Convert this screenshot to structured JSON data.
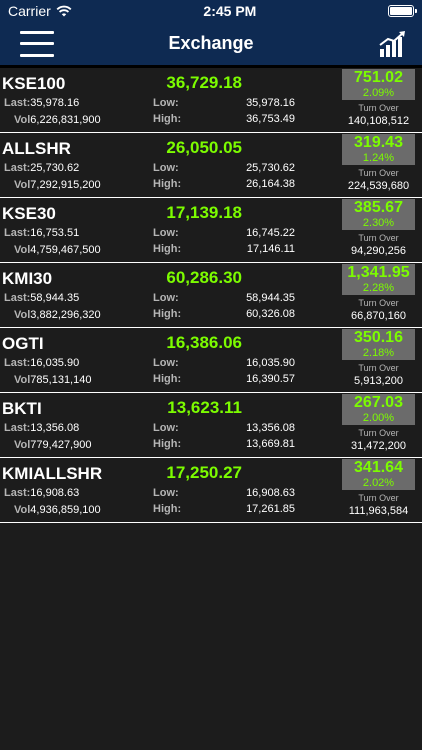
{
  "status": {
    "carrier": "Carrier",
    "time": "2:45 PM"
  },
  "nav": {
    "title": "Exchange"
  },
  "labels": {
    "last": "Last:",
    "vol": "Vol",
    "low": "Low:",
    "high": "High:",
    "turnover": "Turn Over"
  },
  "colors": {
    "positive": "#7cfc00",
    "header": "#0e2a52",
    "change_box": "#6b6b6b"
  },
  "indices": [
    {
      "symbol": "KSE100",
      "last": "35,978.16",
      "vol": "6,226,831,900",
      "price": "36,729.18",
      "low": "35,978.16",
      "high": "36,753.49",
      "change": "751.02",
      "pct": "2.09%",
      "turnover": "140,108,512"
    },
    {
      "symbol": "ALLSHR",
      "last": "25,730.62",
      "vol": "7,292,915,200",
      "price": "26,050.05",
      "low": "25,730.62",
      "high": "26,164.38",
      "change": "319.43",
      "pct": "1.24%",
      "turnover": "224,539,680"
    },
    {
      "symbol": "KSE30",
      "last": "16,753.51",
      "vol": "4,759,467,500",
      "price": "17,139.18",
      "low": "16,745.22",
      "high": "17,146.11",
      "change": "385.67",
      "pct": "2.30%",
      "turnover": "94,290,256"
    },
    {
      "symbol": "KMI30",
      "last": "58,944.35",
      "vol": "3,882,296,320",
      "price": "60,286.30",
      "low": "58,944.35",
      "high": "60,326.08",
      "change": "1,341.95",
      "pct": "2.28%",
      "turnover": "66,870,160"
    },
    {
      "symbol": "OGTI",
      "last": "16,035.90",
      "vol": "785,131,140",
      "price": "16,386.06",
      "low": "16,035.90",
      "high": "16,390.57",
      "change": "350.16",
      "pct": "2.18%",
      "turnover": "5,913,200"
    },
    {
      "symbol": "BKTI",
      "last": "13,356.08",
      "vol": "779,427,900",
      "price": "13,623.11",
      "low": "13,356.08",
      "high": "13,669.81",
      "change": "267.03",
      "pct": "2.00%",
      "turnover": "31,472,200"
    },
    {
      "symbol": "KMIALLSHR",
      "last": "16,908.63",
      "vol": "4,936,859,100",
      "price": "17,250.27",
      "low": "16,908.63",
      "high": "17,261.85",
      "change": "341.64",
      "pct": "2.02%",
      "turnover": "111,963,584"
    }
  ]
}
